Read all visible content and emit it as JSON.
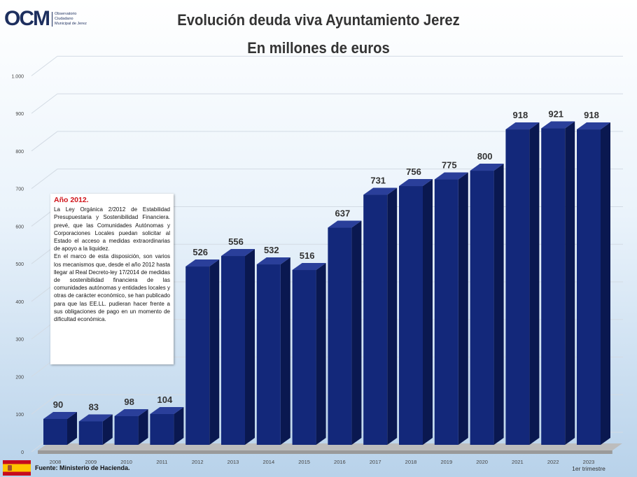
{
  "header": {
    "logo_mark": "OCM",
    "logo_line1": "Observatorio",
    "logo_line2": "Ciudadano",
    "logo_line3": "Municipal de Jerez"
  },
  "chart_data": {
    "type": "bar",
    "title": "Evolución deuda viva Ayuntamiento Jerez",
    "subtitle": "En millones de euros",
    "categories": [
      "2008",
      "2009",
      "2010",
      "2011",
      "2012",
      "2013",
      "2014",
      "2015",
      "2016",
      "2017",
      "2018",
      "2019",
      "2020",
      "2021",
      "2022",
      "2023"
    ],
    "category_sublabels": {
      "2023": "1er trimestre"
    },
    "values": [
      90,
      83,
      98,
      104,
      526,
      556,
      532,
      516,
      637,
      731,
      756,
      775,
      800,
      918,
      921,
      918
    ],
    "ylim": [
      0,
      1000
    ],
    "y_ticks": [
      0,
      100,
      200,
      300,
      400,
      500,
      600,
      700,
      800,
      900,
      1000
    ],
    "y_tick_labels": [
      "0",
      "100",
      "200",
      "300",
      "400",
      "500",
      "600",
      "700",
      "800",
      "900",
      "1.000"
    ],
    "grid": true,
    "bar_color": "#13287a"
  },
  "annotation": {
    "title": "Año 2012.",
    "para1": "La Ley Orgánica 2/2012 de Estabilidad Presupuestaria y Sostenibilidad Financiera. prevé, que las Comunidades Autónomas y Corporaciones Locales puedan solicitar al Estado el acceso a medidas extraordinarias de apoyo a la liquidez.",
    "para2": "En el marco de esta disposición, son varios los mecanismos que, desde el año 2012 hasta llegar al Real Decreto-ley 17/2014 de medidas de sostenibilidad financiera de las comunidades autónomas y entidades locales y otras de carácter económico, se han publicado para que las EE.LL. pudieran hacer frente a sus obligaciones de pago en un momento de dificultad económica."
  },
  "footer": {
    "source": "Fuente: Ministerio de Hacienda."
  }
}
